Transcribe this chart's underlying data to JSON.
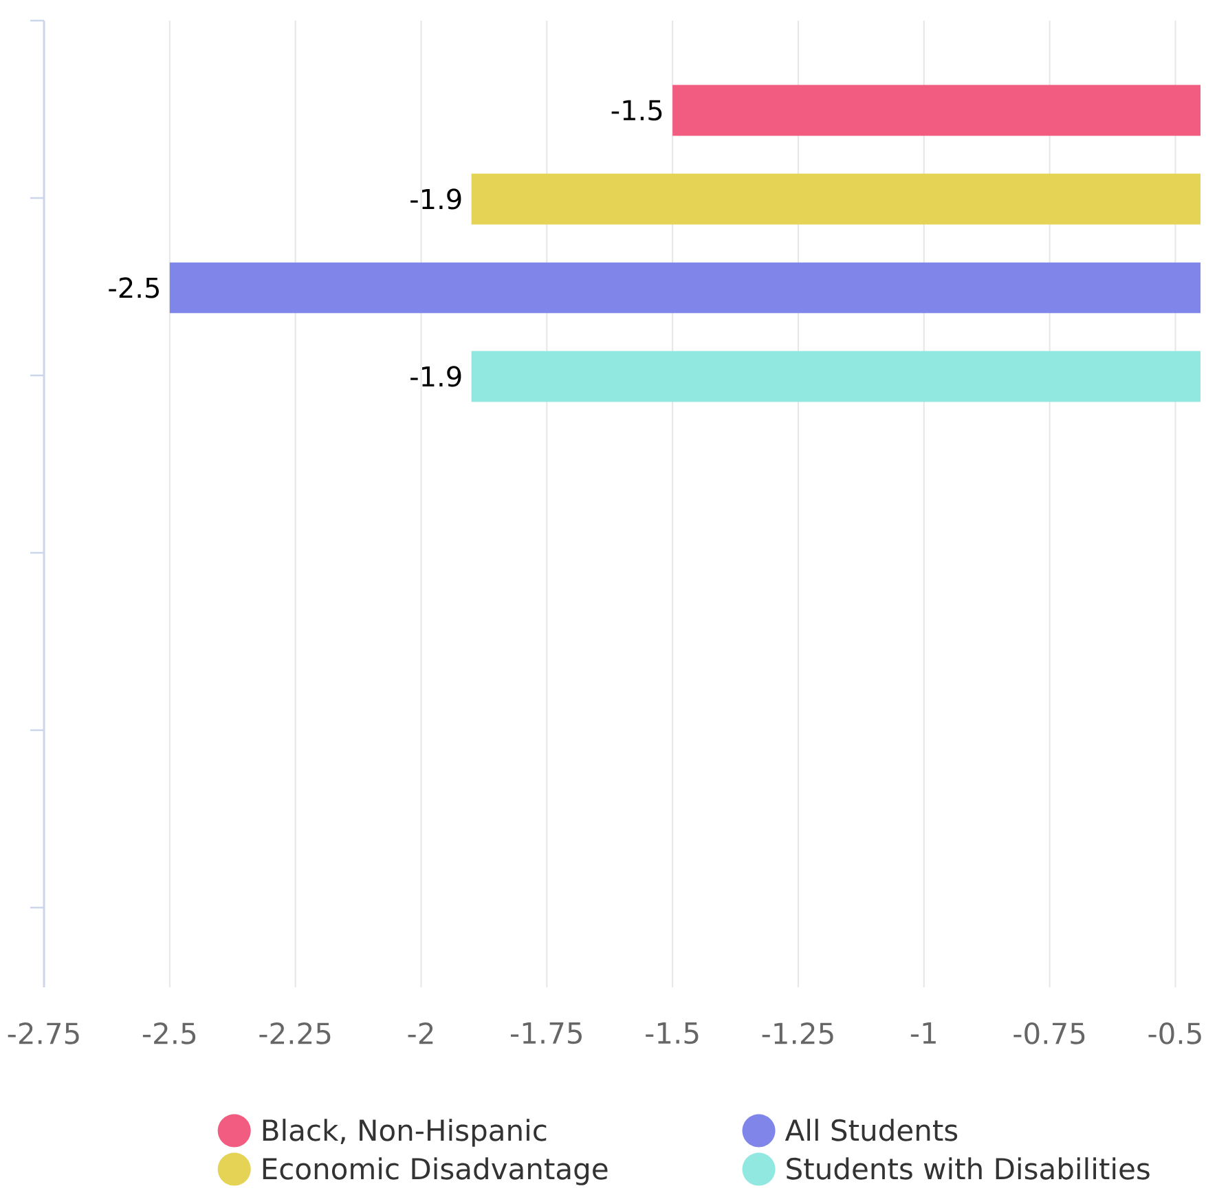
{
  "chart_data": {
    "type": "bar",
    "orientation": "horizontal",
    "categories": [
      null
    ],
    "series": [
      {
        "name": "Black, Non-Hispanic",
        "color": "#f15c80",
        "values": [
          -1.5
        ]
      },
      {
        "name": "Economic Disadvantage",
        "color": "#e4d354",
        "values": [
          -1.9
        ]
      },
      {
        "name": "All Students",
        "color": "#8085e9",
        "values": [
          -2.5
        ]
      },
      {
        "name": "Students with Disabilities",
        "color": "#91e8e1",
        "values": [
          -1.9
        ]
      }
    ],
    "xlim": [
      -2.75,
      -0.45
    ],
    "xticks": [
      -2.75,
      -2.5,
      -2.25,
      -2,
      -1.75,
      -1.5,
      -1.25,
      -1,
      -0.75,
      -0.5
    ],
    "grid": "x",
    "legend": "bottom",
    "data_labels": true,
    "tick_labels": "x"
  }
}
